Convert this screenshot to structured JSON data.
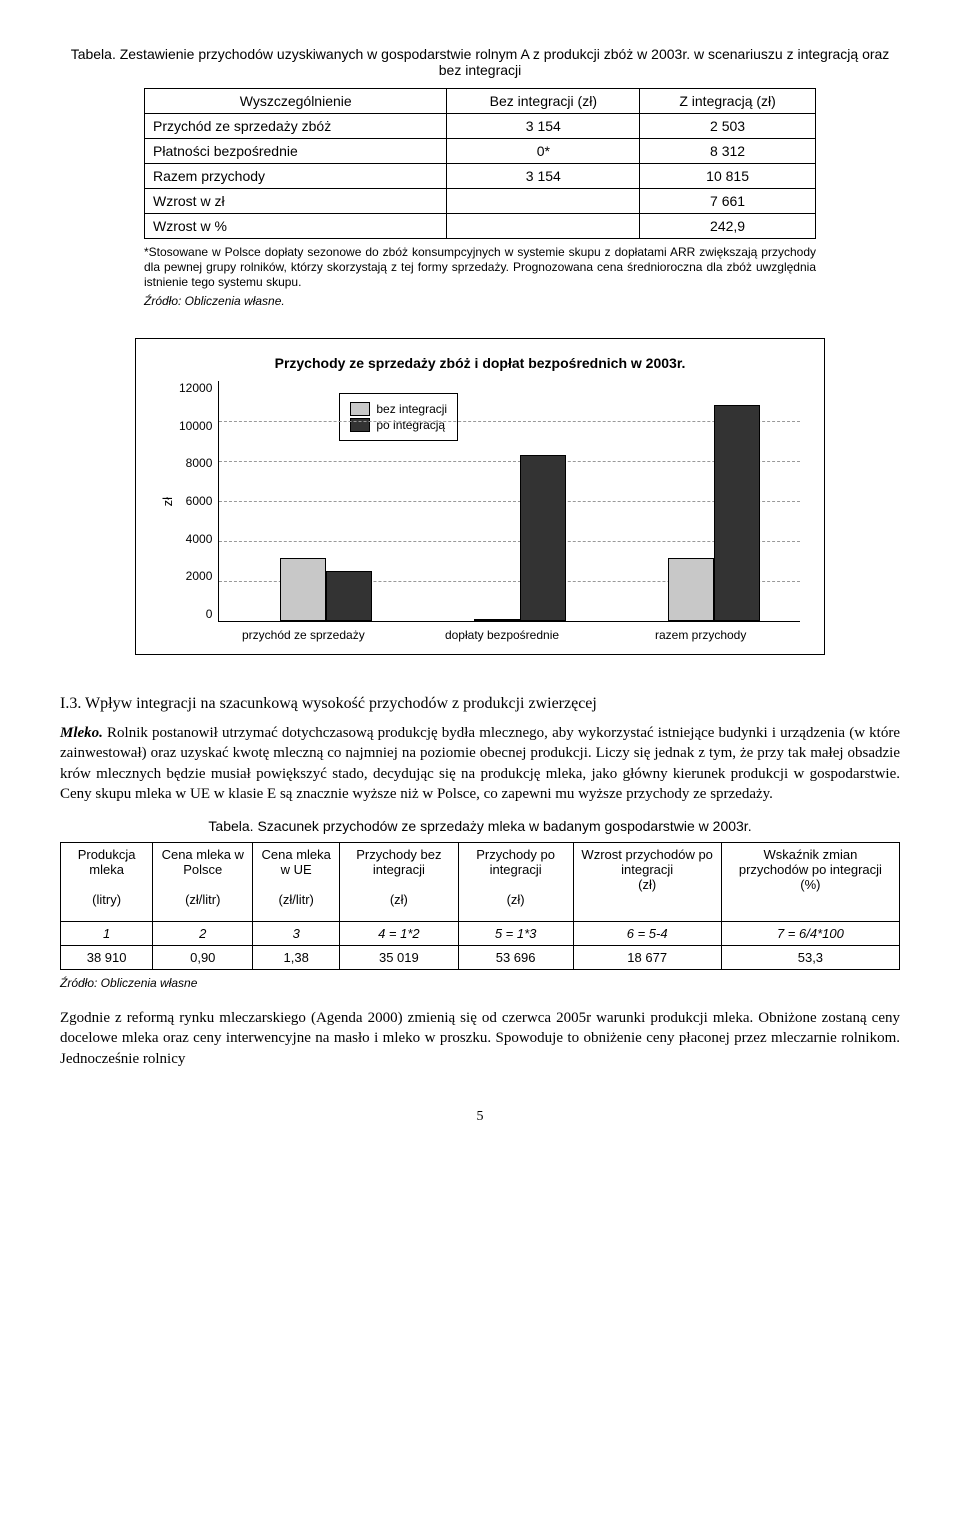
{
  "table1": {
    "caption": "Tabela. Zestawienie przychodów uzyskiwanych w gospodarstwie rolnym A z produkcji zbóż w 2003r. w scenariuszu z integracją oraz bez integracji",
    "headers": [
      "Wyszczególnienie",
      "Bez integracji (zł)",
      "Z integracją (zł)"
    ],
    "rows": [
      [
        "Przychód ze sprzedaży zbóż",
        "3 154",
        "2 503"
      ],
      [
        "Płatności bezpośrednie",
        "0*",
        "8 312"
      ],
      [
        "Razem przychody",
        "3 154",
        "10 815"
      ],
      [
        "Wzrost w zł",
        "",
        "7 661"
      ],
      [
        "Wzrost w %",
        "",
        "242,9"
      ]
    ],
    "footnote": "*Stosowane w Polsce dopłaty sezonowe do zbóż konsumpcyjnych w systemie skupu z dopłatami ARR zwiększają przychody dla pewnej grupy rolników, którzy skorzystają z tej formy sprzedaży. Prognozowana cena średnioroczna dla zbóż uwzględnia istnienie tego systemu skupu.",
    "source": "Źródło: Obliczenia własne."
  },
  "chart": {
    "title": "Przychody ze sprzedaży zbóż i dopłat bezpośrednich w 2003r.",
    "y_label": "zł",
    "y_ticks": [
      "12000",
      "10000",
      "8000",
      "6000",
      "4000",
      "2000",
      "0"
    ],
    "y_max": 12000,
    "categories": [
      "przychód ze sprzedaży",
      "dopłaty bezpośrednie",
      "razem przychody"
    ],
    "series": [
      {
        "label": "bez integracji",
        "color": "#c8c8c8",
        "values": [
          3154,
          0,
          3154
        ]
      },
      {
        "label": "po integracją",
        "color": "#333333",
        "values": [
          2503,
          8312,
          10815
        ]
      }
    ],
    "bar_border": "#000000",
    "grid_color": "#aeaeae"
  },
  "section": {
    "heading": "I.3. Wpływ integracji na szacunkową wysokość przychodów z produkcji zwierzęcej",
    "lead": "Mleko.",
    "para": " Rolnik postanowił utrzymać dotychczasową produkcję bydła mlecznego, aby wykorzystać istniejące budynki i urządzenia (w które zainwestował) oraz uzyskać kwotę mleczną co najmniej na poziomie obecnej produkcji. Liczy się jednak z tym, że przy tak małej obsadzie krów mlecznych będzie musiał powiększyć stado, decydując się na produkcję mleka, jako główny kierunek produkcji w gospodarstwie. Ceny skupu mleka w UE w klasie E są znacznie wyższe niż w Polsce, co zapewni mu wyższe przychody ze sprzedaży."
  },
  "table2": {
    "caption": "Tabela. Szacunek przychodów ze sprzedaży mleka w badanym gospodarstwie w 2003r.",
    "headers": [
      "Produkcja mleka",
      "Cena mleka w Polsce",
      "Cena mleka w UE",
      "Przychody bez integracji",
      "Przychody po integracji",
      "Wzrost przychodów po integracji",
      "Wskaźnik zmian przychodów po integracji"
    ],
    "units": [
      "(litry)",
      "(zł/litr)",
      "(zł/litr)",
      "(zł)",
      "(zł)",
      "(zł)",
      "(%)"
    ],
    "formula": [
      "1",
      "2",
      "3",
      "4 = 1*2",
      "5 = 1*3",
      "6 = 5-4",
      "7 = 6/4*100"
    ],
    "data": [
      "38 910",
      "0,90",
      "1,38",
      "35 019",
      "53 696",
      "18 677",
      "53,3"
    ],
    "source": "Źródło: Obliczenia własne"
  },
  "closing": {
    "para": "Zgodnie z reformą rynku mleczarskiego (Agenda 2000) zmienią się od czerwca 2005r warunki produkcji mleka. Obniżone zostaną ceny docelowe mleka oraz ceny interwencyjne na masło i mleko w proszku. Spowoduje to obniżenie ceny płaconej przez mleczarnie rolnikom. Jednocześnie rolnicy"
  },
  "page": "5"
}
